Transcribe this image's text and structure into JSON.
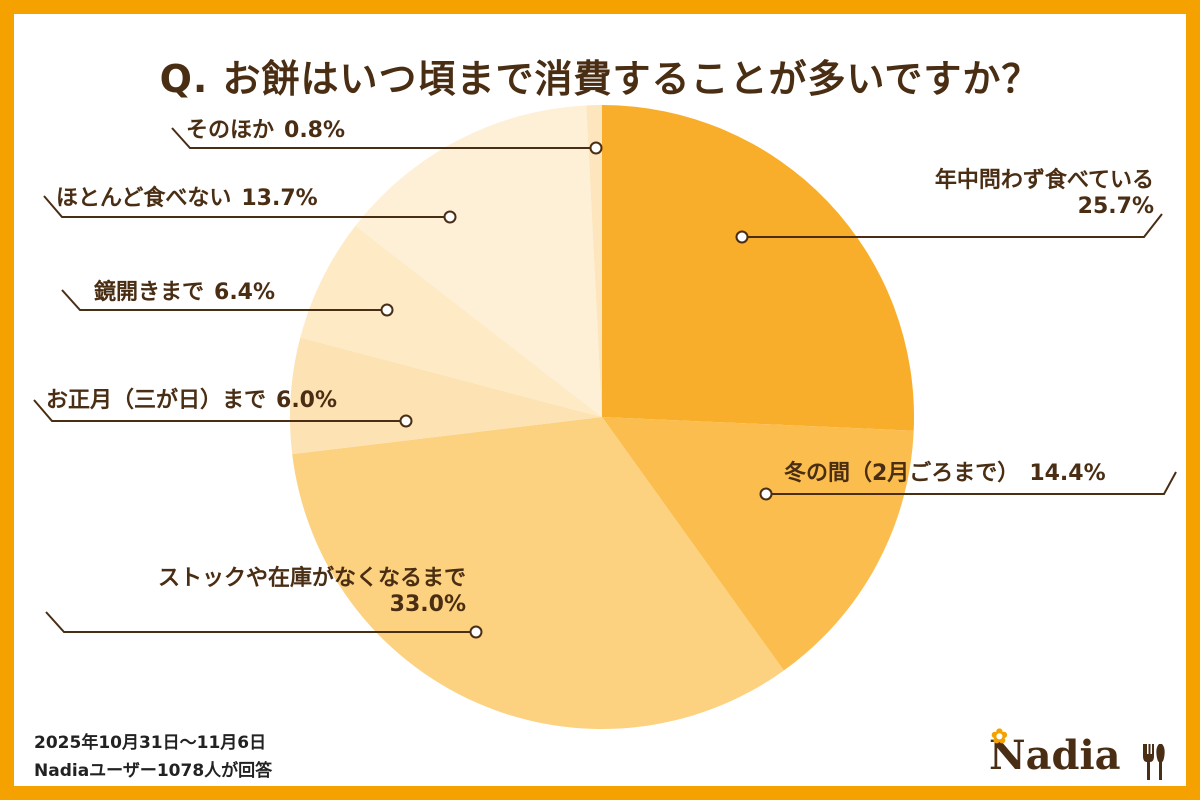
{
  "title": "Q. お餅はいつ頃まで消費することが多いですか？",
  "chart_data": {
    "type": "pie",
    "title": "Q. お餅はいつ頃まで消費することが多いですか？",
    "slices": [
      {
        "label": "年中問わず食べている",
        "value": 25.7,
        "value_label": "25.7%",
        "color": "#F9AE2B"
      },
      {
        "label": "冬の間（2月ごろまで）",
        "value": 14.4,
        "value_label": "14.4%",
        "color": "#FBBE4E"
      },
      {
        "label": "ストックや在庫がなくなるまで",
        "value": 33.0,
        "value_label": "33.0%",
        "color": "#FCD17F"
      },
      {
        "label": "お正月（三が日）まで",
        "value": 6.0,
        "value_label": "6.0%",
        "color": "#FDE3B3"
      },
      {
        "label": "鏡開きまで",
        "value": 6.4,
        "value_label": "6.4%",
        "color": "#FEEAC5"
      },
      {
        "label": "ほとんど食べない",
        "value": 13.7,
        "value_label": "13.7%",
        "color": "#FEF0D6"
      },
      {
        "label": "そのほか",
        "value": 0.8,
        "value_label": "0.8%",
        "color": "#FDE6BD"
      }
    ],
    "start": "12 o'clock",
    "direction": "clockwise"
  },
  "footnote": {
    "date": "2025年10月31日～11月6日",
    "respondents": "Nadiaユーザー1078人が回答"
  },
  "logo": {
    "text": "Nadia",
    "accent": "#F5A100"
  },
  "colors": {
    "frame": "#F5A100",
    "text": "#4A2E14",
    "leader": "#4A2E14"
  }
}
